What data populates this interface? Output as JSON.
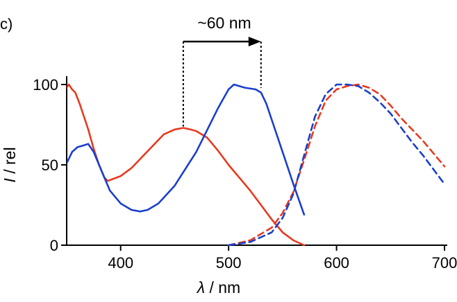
{
  "chart_data": {
    "type": "line",
    "panel_label": "c)",
    "xlabel_italic": "λ",
    "xlabel_rest": " / nm",
    "ylabel_italic": "I",
    "ylabel_rest": " / rel",
    "xlim": [
      350,
      700
    ],
    "ylim": [
      0,
      100
    ],
    "xticks": [
      400,
      500,
      600,
      700
    ],
    "yticks": [
      0,
      50,
      100
    ],
    "xticklabels": [
      "400",
      "500",
      "600",
      "700"
    ],
    "yticklabels": [
      "0",
      "50",
      "100"
    ],
    "grid": false,
    "annotation": {
      "text": "~60 nm",
      "from_x": 458,
      "to_x": 530
    },
    "series": [
      {
        "color": "#e8391e",
        "dash": "solid",
        "x": [
          350,
          352,
          355,
          358,
          362,
          366,
          370,
          375,
          380,
          385,
          388,
          392,
          400,
          410,
          420,
          430,
          440,
          450,
          458,
          465,
          470,
          480,
          490,
          500,
          510,
          520,
          530,
          540,
          550,
          560,
          570
        ],
        "y": [
          98,
          100,
          97,
          95,
          88,
          80,
          72,
          60,
          50,
          42,
          40,
          41,
          43,
          48,
          55,
          62,
          69,
          72,
          73,
          72,
          71,
          67,
          59,
          50,
          42,
          34,
          25,
          16,
          8,
          3,
          0
        ]
      },
      {
        "color": "#1a3fcc",
        "dash": "solid",
        "x": [
          350,
          355,
          360,
          365,
          370,
          375,
          380,
          385,
          390,
          400,
          410,
          418,
          425,
          435,
          450,
          470,
          490,
          500,
          505,
          515,
          525,
          530,
          535,
          540,
          550,
          560,
          570
        ],
        "y": [
          51,
          58,
          61,
          62,
          63,
          58,
          50,
          42,
          34,
          26,
          22,
          21,
          22,
          26,
          37,
          58,
          85,
          97,
          100,
          98,
          97,
          95,
          88,
          78,
          58,
          38,
          19
        ]
      },
      {
        "color": "#e8391e",
        "dash": "dashed",
        "x": [
          500,
          520,
          540,
          550,
          560,
          570,
          580,
          590,
          600,
          610,
          620,
          630,
          640,
          650,
          660,
          670,
          680,
          690,
          700
        ],
        "y": [
          0,
          3,
          11,
          20,
          33,
          53,
          74,
          90,
          97,
          99,
          100,
          98,
          94,
          87,
          79,
          72,
          65,
          57,
          49
        ]
      },
      {
        "color": "#1a3fcc",
        "dash": "dashed",
        "x": [
          500,
          520,
          540,
          550,
          560,
          570,
          580,
          590,
          600,
          610,
          620,
          630,
          640,
          650,
          660,
          670,
          680,
          690,
          700
        ],
        "y": [
          0,
          2,
          8,
          17,
          32,
          56,
          80,
          94,
          100,
          100,
          99,
          95,
          89,
          82,
          73,
          64,
          56,
          47,
          38
        ]
      }
    ]
  }
}
